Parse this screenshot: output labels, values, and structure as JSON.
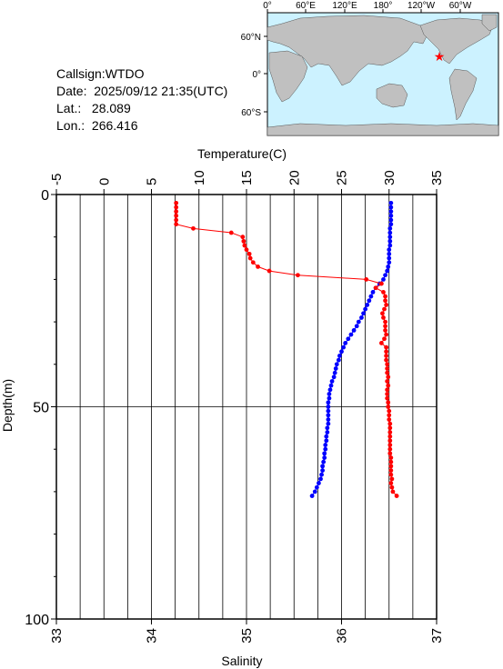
{
  "info": {
    "callsign_label": "Callsign:",
    "callsign": "WTDO",
    "date_label": "Date:",
    "date": "2025/09/12 21:35(UTC)",
    "lat_label": "Lat.:",
    "lat": "28.089",
    "lon_label": "Lon.:",
    "lon": "266.416"
  },
  "map": {
    "top_labels": [
      "0°",
      "60°E",
      "120°E",
      "180°",
      "120°W",
      "60°W"
    ],
    "left_labels": [
      "60°N",
      "0°",
      "60°S"
    ],
    "ocean_color": "#ccf2ff",
    "land_color": "#c0c0c0",
    "marker_color": "#ff0000",
    "marker_icon": "star-icon"
  },
  "chart_data": {
    "type": "line",
    "title": "",
    "x_top_label": "Temperature(C)",
    "x_bottom_label": "Salinity",
    "ylabel": "Depth(m)",
    "temperature_ticks": [
      "-5",
      "0",
      "5",
      "10",
      "15",
      "20",
      "25",
      "30",
      "35"
    ],
    "salinity_ticks": [
      "33",
      "34",
      "35",
      "36",
      "37"
    ],
    "depth_ticks": [
      "0",
      "50",
      "100"
    ],
    "xlim_temperature": [
      -5,
      35
    ],
    "xlim_salinity": [
      33,
      37
    ],
    "ylim_depth": [
      0,
      100
    ],
    "depth_reversed": true,
    "grid": true,
    "series": [
      {
        "name": "Temperature",
        "axis": "temperature",
        "color": "#0000ff",
        "points": [
          [
            30.2,
            2
          ],
          [
            30.2,
            3
          ],
          [
            30.2,
            4
          ],
          [
            30.2,
            5
          ],
          [
            30.2,
            6
          ],
          [
            30.2,
            7
          ],
          [
            30.1,
            8
          ],
          [
            30.1,
            9
          ],
          [
            30.1,
            10
          ],
          [
            30.1,
            11
          ],
          [
            30.1,
            12
          ],
          [
            30.0,
            13
          ],
          [
            30.0,
            14
          ],
          [
            30.0,
            15
          ],
          [
            30.0,
            16
          ],
          [
            29.9,
            17
          ],
          [
            29.8,
            18
          ],
          [
            29.6,
            19
          ],
          [
            29.4,
            20
          ],
          [
            29.0,
            21
          ],
          [
            28.6,
            22
          ],
          [
            28.3,
            23
          ],
          [
            28.1,
            24
          ],
          [
            27.9,
            25
          ],
          [
            27.7,
            26
          ],
          [
            27.5,
            27
          ],
          [
            27.3,
            28
          ],
          [
            27.1,
            29
          ],
          [
            26.8,
            30
          ],
          [
            26.6,
            31
          ],
          [
            26.3,
            32
          ],
          [
            26.0,
            33
          ],
          [
            25.7,
            34
          ],
          [
            25.4,
            35
          ],
          [
            25.2,
            36
          ],
          [
            25.0,
            37
          ],
          [
            24.8,
            38
          ],
          [
            24.7,
            39
          ],
          [
            24.5,
            40
          ],
          [
            24.4,
            41
          ],
          [
            24.3,
            42
          ],
          [
            24.2,
            43
          ],
          [
            24.0,
            44
          ],
          [
            23.9,
            45
          ],
          [
            23.8,
            46
          ],
          [
            23.7,
            47
          ],
          [
            23.7,
            48
          ],
          [
            23.6,
            49
          ],
          [
            23.6,
            50
          ],
          [
            23.6,
            51
          ],
          [
            23.6,
            52
          ],
          [
            23.6,
            53
          ],
          [
            23.6,
            54
          ],
          [
            23.5,
            55
          ],
          [
            23.5,
            56
          ],
          [
            23.4,
            57
          ],
          [
            23.4,
            58
          ],
          [
            23.3,
            59
          ],
          [
            23.3,
            60
          ],
          [
            23.2,
            61
          ],
          [
            23.2,
            62
          ],
          [
            23.1,
            63
          ],
          [
            23.0,
            64
          ],
          [
            23.0,
            65
          ],
          [
            22.9,
            66
          ],
          [
            22.8,
            67
          ],
          [
            22.6,
            68
          ],
          [
            22.4,
            69
          ],
          [
            22.2,
            70
          ],
          [
            21.9,
            71
          ]
        ]
      },
      {
        "name": "Salinity",
        "axis": "salinity",
        "color": "#ff0000",
        "points": [
          [
            34.26,
            2
          ],
          [
            34.26,
            3
          ],
          [
            34.26,
            4
          ],
          [
            34.26,
            5
          ],
          [
            34.26,
            6
          ],
          [
            34.26,
            7
          ],
          [
            34.44,
            8
          ],
          [
            34.84,
            9
          ],
          [
            34.96,
            10
          ],
          [
            34.97,
            11
          ],
          [
            34.98,
            12
          ],
          [
            35.0,
            13
          ],
          [
            35.03,
            14
          ],
          [
            35.04,
            15
          ],
          [
            35.07,
            16
          ],
          [
            35.12,
            17
          ],
          [
            35.24,
            18
          ],
          [
            35.54,
            19
          ],
          [
            36.26,
            20
          ],
          [
            36.42,
            21
          ],
          [
            36.36,
            22
          ],
          [
            36.44,
            23
          ],
          [
            36.46,
            24
          ],
          [
            36.46,
            25
          ],
          [
            36.47,
            26
          ],
          [
            36.45,
            27
          ],
          [
            36.43,
            28
          ],
          [
            36.44,
            29
          ],
          [
            36.46,
            30
          ],
          [
            36.46,
            31
          ],
          [
            36.46,
            32
          ],
          [
            36.47,
            33
          ],
          [
            36.45,
            34
          ],
          [
            36.42,
            35
          ],
          [
            36.47,
            36
          ],
          [
            36.47,
            37
          ],
          [
            36.47,
            38
          ],
          [
            36.47,
            39
          ],
          [
            36.48,
            40
          ],
          [
            36.48,
            41
          ],
          [
            36.48,
            42
          ],
          [
            36.49,
            43
          ],
          [
            36.48,
            44
          ],
          [
            36.49,
            45
          ],
          [
            36.48,
            46
          ],
          [
            36.48,
            47
          ],
          [
            36.48,
            48
          ],
          [
            36.49,
            49
          ],
          [
            36.49,
            50
          ],
          [
            36.5,
            51
          ],
          [
            36.5,
            52
          ],
          [
            36.5,
            53
          ],
          [
            36.51,
            54
          ],
          [
            36.51,
            55
          ],
          [
            36.51,
            56
          ],
          [
            36.51,
            57
          ],
          [
            36.51,
            58
          ],
          [
            36.51,
            59
          ],
          [
            36.51,
            60
          ],
          [
            36.51,
            61
          ],
          [
            36.52,
            62
          ],
          [
            36.52,
            63
          ],
          [
            36.52,
            64
          ],
          [
            36.52,
            65
          ],
          [
            36.52,
            66
          ],
          [
            36.53,
            67
          ],
          [
            36.52,
            68
          ],
          [
            36.53,
            69
          ],
          [
            36.54,
            70
          ],
          [
            36.58,
            71
          ]
        ]
      }
    ]
  }
}
